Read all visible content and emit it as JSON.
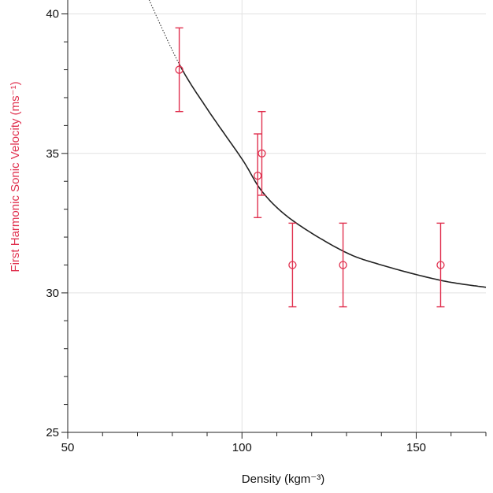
{
  "chart_data": {
    "type": "scatter",
    "title": "",
    "xlabel": "Density (kgm⁻³)",
    "ylabel": "First Harmonic Sonic Velocity (ms⁻¹)",
    "xlim": [
      50,
      170
    ],
    "ylim": [
      25,
      40.5
    ],
    "x_ticks": [
      50,
      100,
      150
    ],
    "y_ticks": [
      25,
      30,
      35,
      40
    ],
    "x_minor_step": 10,
    "y_minor_step": 1,
    "grid": true,
    "series": [
      {
        "points": [
          {
            "x": 82,
            "y": 38,
            "yerr": 1.5
          },
          {
            "x": 104.5,
            "y": 34.2,
            "yerr": 1.5
          },
          {
            "x": 105.7,
            "y": 35,
            "yerr": 1.5
          },
          {
            "x": 114.5,
            "y": 31,
            "yerr": 1.5
          },
          {
            "x": 129,
            "y": 31,
            "yerr": 1.5
          },
          {
            "x": 157,
            "y": 31,
            "yerr": 1.5
          }
        ],
        "color": "#e0304e"
      }
    ],
    "fit": {
      "type": "curve",
      "points": [
        {
          "x": 73,
          "y": 40.6
        },
        {
          "x": 82,
          "y": 38.2
        },
        {
          "x": 90,
          "y": 36.6
        },
        {
          "x": 100,
          "y": 34.8
        },
        {
          "x": 106,
          "y": 33.6
        },
        {
          "x": 114.5,
          "y": 32.6
        },
        {
          "x": 129,
          "y": 31.5
        },
        {
          "x": 140,
          "y": 31.0
        },
        {
          "x": 157,
          "y": 30.45
        },
        {
          "x": 170,
          "y": 30.2
        }
      ],
      "solid_from_x": 82,
      "color": "#222222"
    }
  }
}
